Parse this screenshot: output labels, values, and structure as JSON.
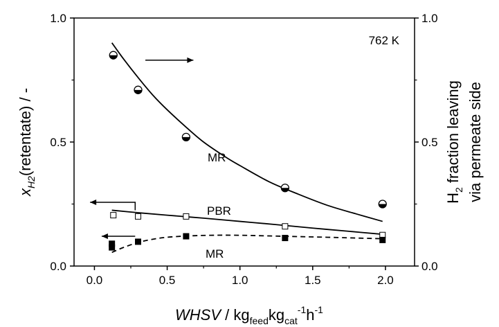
{
  "chart_data": {
    "type": "scatter",
    "x_axis": {
      "range": [
        -0.14,
        2.2
      ],
      "ticks": [
        0.0,
        0.5,
        1.0,
        1.5,
        2.0
      ],
      "tick_labels": [
        "0.0",
        "0.5",
        "1.0",
        "1.5",
        "2.0"
      ],
      "label": "WHSV / kg feed kg cat -1 h -1",
      "label_parts": {
        "main": "WHSV",
        "rest": " / kg",
        "sub1": "feed",
        "mid": "kg",
        "sub2": "cat",
        "sup1": "-1",
        "h": "h",
        "sup2": "-1"
      }
    },
    "y_axis_left": {
      "range": [
        0,
        1.0
      ],
      "ticks": [
        0.0,
        0.5,
        1.0
      ],
      "tick_labels": [
        "0.0",
        "0.5",
        "1.0"
      ],
      "label": "x H2 (retentate) / -",
      "label_parts": {
        "x": "x",
        "sub": "H2",
        "rest": "(retentate) / -"
      }
    },
    "y_axis_right": {
      "range": [
        0,
        1.0
      ],
      "ticks": [
        0.0,
        0.5,
        1.0
      ],
      "tick_labels": [
        "0.0",
        "0.5",
        "1.0"
      ],
      "label_line1": "H2 fraction leaving",
      "label_line1_parts": {
        "h": "H",
        "sub": "2",
        "rest": " fraction leaving"
      },
      "label_line2": "via permeate side"
    },
    "annotations": {
      "temperature": "762 K",
      "mr_top": "MR",
      "pbr": "PBR",
      "mr_bottom": "MR"
    },
    "series": [
      {
        "axis": "right",
        "marker": "half-filled-circle",
        "points": [
          [
            0.13,
            0.85
          ],
          [
            0.3,
            0.71
          ],
          [
            0.63,
            0.52
          ],
          [
            1.31,
            0.315
          ],
          [
            1.98,
            0.25
          ]
        ]
      },
      {
        "axis": "right",
        "line": "solid",
        "curve": [
          [
            0.12,
            0.9
          ],
          [
            0.2,
            0.835
          ],
          [
            0.3,
            0.76
          ],
          [
            0.4,
            0.69
          ],
          [
            0.5,
            0.63
          ],
          [
            0.63,
            0.56
          ],
          [
            0.75,
            0.5
          ],
          [
            0.9,
            0.44
          ],
          [
            1.0,
            0.405
          ],
          [
            1.2,
            0.34
          ],
          [
            1.4,
            0.29
          ],
          [
            1.6,
            0.245
          ],
          [
            1.8,
            0.21
          ],
          [
            1.98,
            0.18
          ]
        ]
      },
      {
        "axis": "left",
        "marker": "open-square",
        "points": [
          [
            0.13,
            0.205
          ],
          [
            0.3,
            0.2
          ],
          [
            0.63,
            0.2
          ],
          [
            1.31,
            0.16
          ],
          [
            1.98,
            0.125
          ]
        ]
      },
      {
        "axis": "left",
        "line": "solid",
        "curve": [
          [
            0.12,
            0.225
          ],
          [
            0.3,
            0.215
          ],
          [
            0.5,
            0.205
          ],
          [
            0.75,
            0.193
          ],
          [
            1.0,
            0.18
          ],
          [
            1.25,
            0.167
          ],
          [
            1.5,
            0.153
          ],
          [
            1.75,
            0.14
          ],
          [
            1.98,
            0.128
          ]
        ]
      },
      {
        "axis": "left",
        "marker": "filled-square",
        "points": [
          [
            0.12,
            0.09
          ],
          [
            0.12,
            0.075
          ],
          [
            0.3,
            0.098
          ],
          [
            0.63,
            0.12
          ],
          [
            1.31,
            0.113
          ],
          [
            1.98,
            0.105
          ]
        ]
      },
      {
        "axis": "left",
        "line": "dashed",
        "curve": [
          [
            0.12,
            0.055
          ],
          [
            0.2,
            0.075
          ],
          [
            0.3,
            0.095
          ],
          [
            0.4,
            0.108
          ],
          [
            0.5,
            0.116
          ],
          [
            0.63,
            0.121
          ],
          [
            0.8,
            0.124
          ],
          [
            1.0,
            0.124
          ],
          [
            1.3,
            0.12
          ],
          [
            1.6,
            0.116
          ],
          [
            1.98,
            0.11
          ]
        ]
      }
    ],
    "arrows": [
      {
        "direction": "right",
        "x_from": 0.35,
        "x_to": 0.68,
        "y": 0.83,
        "axis": "right"
      },
      {
        "direction": "left",
        "x_from": 0.28,
        "x_to": -0.03,
        "y": 0.257,
        "elbow": {
          "x": 0.28,
          "y2": 0.225
        },
        "axis": "left"
      },
      {
        "direction": "left",
        "x_from": 0.28,
        "x_to": 0.05,
        "y": 0.12,
        "axis": "left"
      }
    ]
  }
}
